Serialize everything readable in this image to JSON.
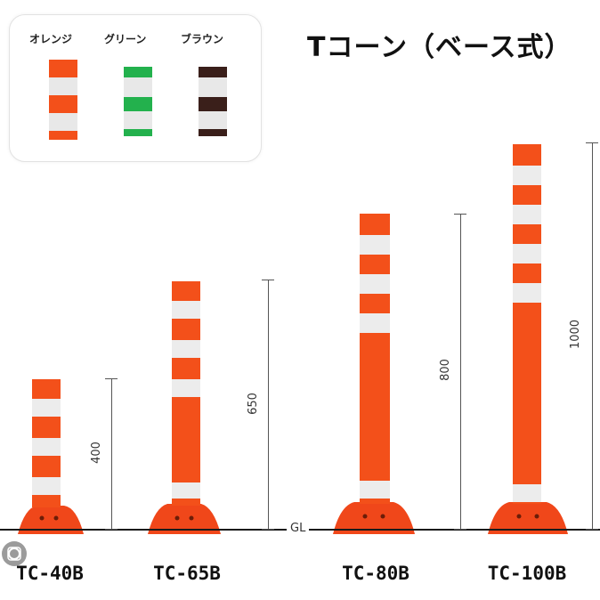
{
  "title": "Tコーン（ベース式）",
  "legend": {
    "items": [
      {
        "label": "オレンジ",
        "color": "#f3501a"
      },
      {
        "label": "グリーン",
        "color": "#23b14d"
      },
      {
        "label": "ブラウン",
        "color": "#3a1f1a"
      }
    ]
  },
  "ground_label": "GL",
  "colors": {
    "post": "#f3501a",
    "reflector": "#ececec",
    "base": "#f0471a",
    "dim_line": "#555555"
  },
  "posts": [
    {
      "model": "TC-40B",
      "height_mm": "400"
    },
    {
      "model": "TC-65B",
      "height_mm": "650"
    },
    {
      "model": "TC-80B",
      "height_mm": "800"
    },
    {
      "model": "TC-100B",
      "height_mm": "1000"
    }
  ],
  "icons": {
    "corner": "google-lens-icon"
  }
}
